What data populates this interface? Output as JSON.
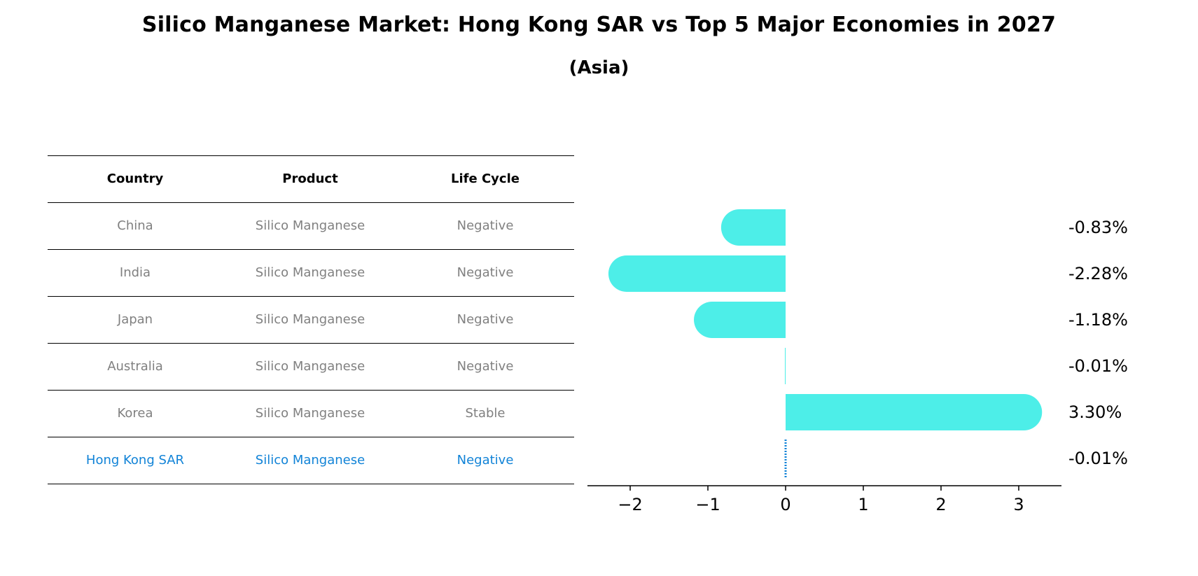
{
  "title": "Silico Manganese Market: Hong Kong SAR vs Top 5 Major Economies in 2027",
  "subtitle": "(Asia)",
  "table": {
    "headers": [
      "Country",
      "Product",
      "Life Cycle"
    ],
    "rows": [
      {
        "country": "China",
        "product": "Silico Manganese",
        "life_cycle": "Negative"
      },
      {
        "country": "India",
        "product": "Silico Manganese",
        "life_cycle": "Negative"
      },
      {
        "country": "Japan",
        "product": "Silico Manganese",
        "life_cycle": "Negative"
      },
      {
        "country": "Australia",
        "product": "Silico Manganese",
        "life_cycle": "Negative"
      },
      {
        "country": "Korea",
        "product": "Silico Manganese",
        "life_cycle": "Stable"
      },
      {
        "country": "Hong Kong SAR",
        "product": "Silico Manganese",
        "life_cycle": "Negative"
      }
    ],
    "highlight_row": "Hong Kong SAR",
    "body_text_color": "#808080",
    "highlight_color": "#1183d7"
  },
  "chart_data": {
    "type": "bar",
    "orientation": "horizontal",
    "categories": [
      "China",
      "India",
      "Japan",
      "Australia",
      "Korea",
      "Hong Kong SAR"
    ],
    "values": [
      -0.83,
      -2.28,
      -1.18,
      -0.01,
      3.3,
      -0.01
    ],
    "value_labels": [
      "-0.83%",
      "-2.28%",
      "-1.18%",
      "-0.01%",
      "3.30%",
      "-0.01%"
    ],
    "xlim": [
      -2.55,
      3.55
    ],
    "xticks": [
      -2,
      -1,
      0,
      1,
      2,
      3
    ],
    "xtick_labels": [
      "−2",
      "−1",
      "0",
      "1",
      "2",
      "3"
    ],
    "bar_color": "#4deee8",
    "highlight_color": "#1183d7",
    "grid": false
  }
}
